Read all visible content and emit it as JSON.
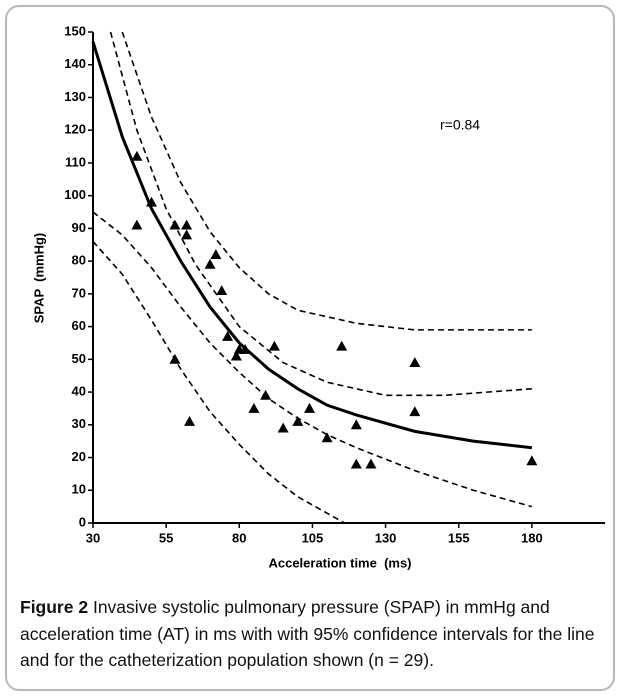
{
  "chart_data": {
    "type": "scatter",
    "xlabel": "Acceleration time  (ms)",
    "ylabel": "SPAP  (mmHg)",
    "annotation": "r=0.84",
    "xlim": [
      30,
      205
    ],
    "ylim": [
      0,
      150
    ],
    "xticks": [
      30,
      55,
      80,
      105,
      130,
      155,
      180
    ],
    "yticks": [
      0,
      10,
      20,
      30,
      40,
      50,
      60,
      70,
      80,
      90,
      100,
      110,
      120,
      130,
      140,
      150
    ],
    "color": "#000000",
    "points": {
      "x": [
        45,
        45,
        50,
        58,
        62,
        62,
        58,
        63,
        70,
        72,
        74,
        76,
        79,
        80,
        82,
        85,
        89,
        92,
        95,
        100,
        104,
        110,
        115,
        120,
        120,
        125,
        140,
        140,
        180
      ],
      "y": [
        112,
        91,
        98,
        91,
        91,
        88,
        50,
        31,
        79,
        82,
        71,
        57,
        51,
        53,
        53,
        35,
        39,
        54,
        29,
        31,
        35,
        26,
        54,
        30,
        18,
        18,
        49,
        34,
        19
      ]
    },
    "lines": [
      {
        "style": "solid",
        "x": [
          30,
          40,
          50,
          60,
          70,
          80,
          90,
          100,
          110,
          120,
          140,
          160,
          180
        ],
        "y": [
          147,
          118,
          96,
          80,
          66,
          55,
          47,
          41,
          36,
          33,
          28,
          25,
          23
        ]
      },
      {
        "style": "dashed",
        "x": [
          36,
          45,
          55,
          65,
          80,
          95,
          110,
          130,
          150,
          180
        ],
        "y": [
          150,
          120,
          96,
          79,
          60,
          49,
          43,
          39,
          39,
          41
        ]
      },
      {
        "style": "dashed",
        "x": [
          30,
          40,
          50,
          60,
          70,
          80,
          90,
          100,
          110,
          120,
          140,
          160,
          180
        ],
        "y": [
          95,
          88,
          78,
          66,
          55,
          46,
          38,
          32,
          27,
          23,
          16,
          10,
          5
        ]
      },
      {
        "style": "dashed",
        "x": [
          40,
          50,
          60,
          70,
          80,
          90,
          100,
          120,
          140,
          160,
          180
        ],
        "y": [
          150,
          124,
          104,
          89,
          78,
          70,
          65,
          61,
          59,
          59,
          59
        ]
      },
      {
        "style": "dashed",
        "x": [
          30,
          40,
          50,
          60,
          70,
          80,
          90,
          100,
          110,
          116
        ],
        "y": [
          86,
          76,
          62,
          47,
          34,
          24,
          15,
          8,
          3,
          0
        ]
      }
    ]
  },
  "caption": {
    "label": "Figure 2",
    "text": "Invasive systolic pulmonary pressure (SPAP) in mmHg and acceleration time (AT) in ms with with 95% confidence intervals for the line and for the catheterization population shown (n = 29)."
  }
}
